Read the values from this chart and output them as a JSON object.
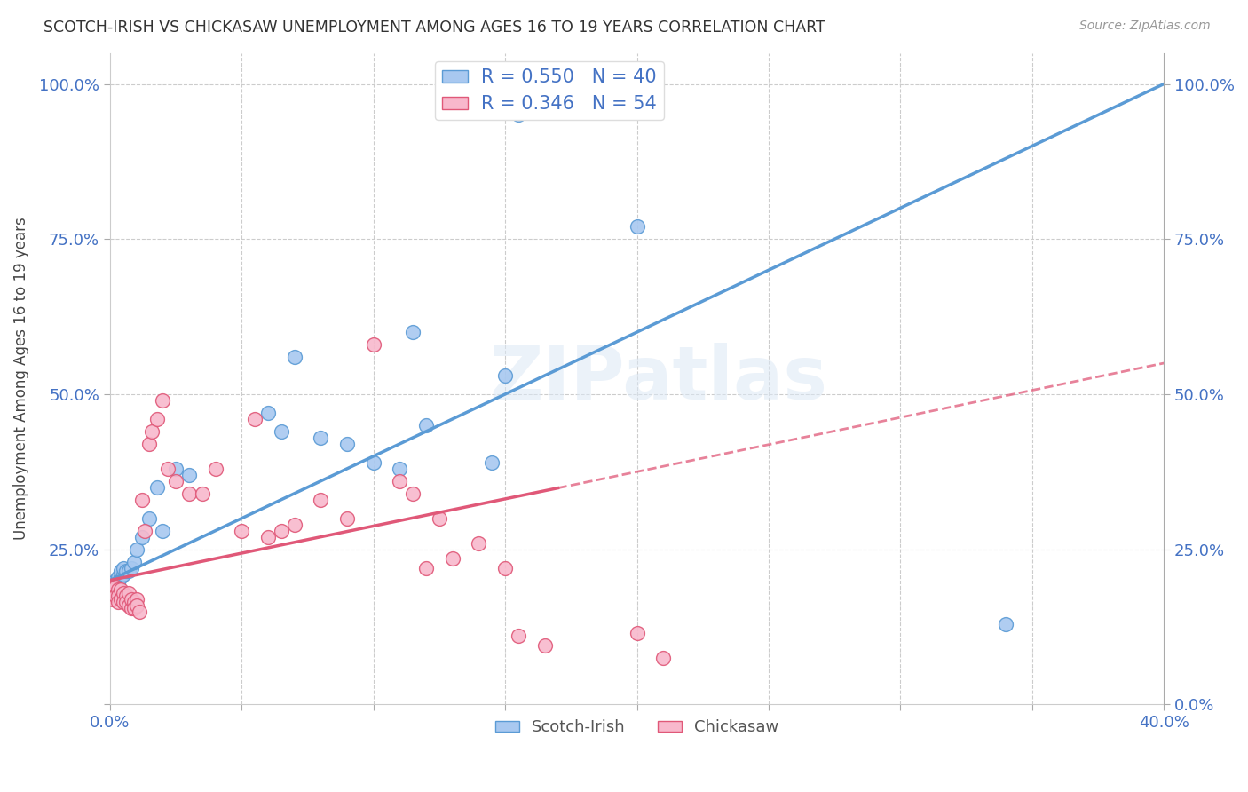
{
  "title": "SCOTCH-IRISH VS CHICKASAW UNEMPLOYMENT AMONG AGES 16 TO 19 YEARS CORRELATION CHART",
  "source": "Source: ZipAtlas.com",
  "ylabel": "Unemployment Among Ages 16 to 19 years",
  "xlim": [
    0.0,
    0.4
  ],
  "ylim": [
    0.0,
    1.05
  ],
  "scotch_irish_fill": "#A8C8F0",
  "scotch_irish_edge": "#5B9BD5",
  "chickasaw_fill": "#F8B8CC",
  "chickasaw_edge": "#E05878",
  "scotch_irish_line": "#5B9BD5",
  "chickasaw_line": "#E05878",
  "text_color": "#4472C4",
  "scotch_irish_R": 0.55,
  "scotch_irish_N": 40,
  "chickasaw_R": 0.346,
  "chickasaw_N": 54,
  "si_x": [
    0.001,
    0.001,
    0.001,
    0.001,
    0.001,
    0.002,
    0.002,
    0.002,
    0.003,
    0.003,
    0.003,
    0.004,
    0.004,
    0.005,
    0.005,
    0.006,
    0.007,
    0.008,
    0.009,
    0.01,
    0.012,
    0.015,
    0.018,
    0.02,
    0.025,
    0.03,
    0.06,
    0.065,
    0.07,
    0.08,
    0.09,
    0.1,
    0.11,
    0.115,
    0.12,
    0.145,
    0.15,
    0.155,
    0.2,
    0.34
  ],
  "si_y": [
    0.175,
    0.185,
    0.18,
    0.19,
    0.195,
    0.185,
    0.195,
    0.2,
    0.195,
    0.2,
    0.205,
    0.205,
    0.215,
    0.21,
    0.22,
    0.215,
    0.215,
    0.22,
    0.23,
    0.25,
    0.27,
    0.3,
    0.35,
    0.28,
    0.38,
    0.37,
    0.47,
    0.44,
    0.56,
    0.43,
    0.42,
    0.39,
    0.38,
    0.6,
    0.45,
    0.39,
    0.53,
    0.95,
    0.77,
    0.13
  ],
  "ck_x": [
    0.001,
    0.001,
    0.001,
    0.002,
    0.002,
    0.002,
    0.003,
    0.003,
    0.003,
    0.004,
    0.004,
    0.005,
    0.005,
    0.006,
    0.006,
    0.007,
    0.007,
    0.008,
    0.008,
    0.009,
    0.009,
    0.01,
    0.01,
    0.011,
    0.012,
    0.013,
    0.015,
    0.016,
    0.018,
    0.02,
    0.022,
    0.025,
    0.03,
    0.035,
    0.04,
    0.05,
    0.055,
    0.06,
    0.065,
    0.07,
    0.08,
    0.09,
    0.1,
    0.11,
    0.115,
    0.12,
    0.125,
    0.13,
    0.14,
    0.15,
    0.155,
    0.165,
    0.2,
    0.21
  ],
  "ck_y": [
    0.175,
    0.185,
    0.17,
    0.18,
    0.19,
    0.175,
    0.185,
    0.175,
    0.165,
    0.185,
    0.17,
    0.18,
    0.165,
    0.175,
    0.165,
    0.18,
    0.16,
    0.155,
    0.17,
    0.165,
    0.155,
    0.17,
    0.16,
    0.15,
    0.33,
    0.28,
    0.42,
    0.44,
    0.46,
    0.49,
    0.38,
    0.36,
    0.34,
    0.34,
    0.38,
    0.28,
    0.46,
    0.27,
    0.28,
    0.29,
    0.33,
    0.3,
    0.58,
    0.36,
    0.34,
    0.22,
    0.3,
    0.235,
    0.26,
    0.22,
    0.11,
    0.095,
    0.115,
    0.075
  ]
}
